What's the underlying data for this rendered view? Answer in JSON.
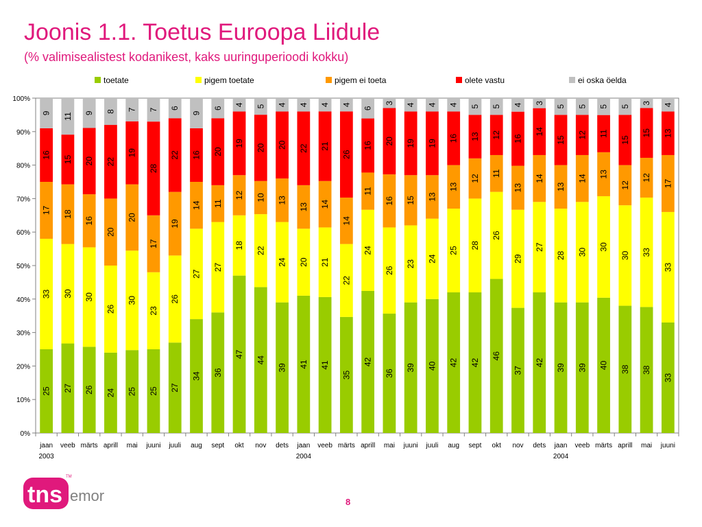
{
  "page": {
    "title": "Joonis 1.1. Toetus Euroopa Liidule",
    "subtitle": "(% valimisealistest kodanikest, kaks uuringuperioodi kokku)",
    "page_number": "8",
    "logo_text": "tns emor"
  },
  "chart_data": {
    "type": "bar",
    "stacked": true,
    "percent_scale": true,
    "categories": [
      "jaan",
      "veeb",
      "märts",
      "aprill",
      "mai",
      "juuni",
      "juuli",
      "aug",
      "sept",
      "okt",
      "nov",
      "dets",
      "jaan",
      "veeb",
      "märts",
      "aprill",
      "mai",
      "juuni",
      "juuli",
      "aug",
      "sept",
      "okt",
      "nov",
      "dets",
      "jaan",
      "veeb",
      "märts",
      "aprill",
      "mai",
      "juuni"
    ],
    "year_labels": [
      {
        "index": 0,
        "label": "2003"
      },
      {
        "index": 12,
        "label": "2004"
      },
      {
        "index": 24,
        "label": "2004"
      }
    ],
    "series": [
      {
        "name": "toetate",
        "color": "#99cc00",
        "values": [
          25,
          27,
          26,
          24,
          25,
          25,
          27,
          34,
          36,
          47,
          44,
          39,
          41,
          41,
          35,
          42,
          36,
          39,
          40,
          42,
          42,
          46,
          37,
          42,
          39,
          39,
          40,
          38,
          38,
          33
        ]
      },
      {
        "name": "pigem toetate",
        "color": "#ffff00",
        "values": [
          33,
          30,
          30,
          26,
          30,
          23,
          26,
          27,
          27,
          18,
          22,
          24,
          20,
          21,
          22,
          24,
          26,
          23,
          24,
          25,
          28,
          26,
          29,
          27,
          28,
          30,
          30,
          30,
          33,
          33
        ]
      },
      {
        "name": "pigem ei toeta",
        "color": "#ff9900",
        "values": [
          17,
          18,
          16,
          20,
          20,
          17,
          19,
          14,
          11,
          12,
          10,
          13,
          13,
          14,
          14,
          11,
          16,
          15,
          13,
          13,
          12,
          11,
          13,
          14,
          13,
          14,
          13,
          12,
          12,
          17
        ]
      },
      {
        "name": "olete vastu",
        "color": "#ff0000",
        "values": [
          16,
          15,
          20,
          22,
          19,
          28,
          22,
          16,
          20,
          19,
          20,
          20,
          22,
          21,
          26,
          16,
          20,
          19,
          19,
          16,
          13,
          12,
          16,
          14,
          15,
          12,
          11,
          15,
          15,
          13
        ]
      },
      {
        "name": "ei oska öelda",
        "color": "#c0c0c0",
        "values": [
          9,
          11,
          9,
          8,
          7,
          7,
          6,
          9,
          6,
          4,
          5,
          4,
          4,
          4,
          4,
          6,
          3,
          4,
          4,
          4,
          5,
          5,
          4,
          3,
          5,
          5,
          5,
          5,
          3,
          4
        ]
      }
    ],
    "y_ticks": [
      "0%",
      "10%",
      "20%",
      "30%",
      "40%",
      "50%",
      "60%",
      "70%",
      "80%",
      "90%",
      "100%"
    ],
    "ylim": [
      0,
      100
    ],
    "grid": false,
    "legend_position": "top"
  }
}
